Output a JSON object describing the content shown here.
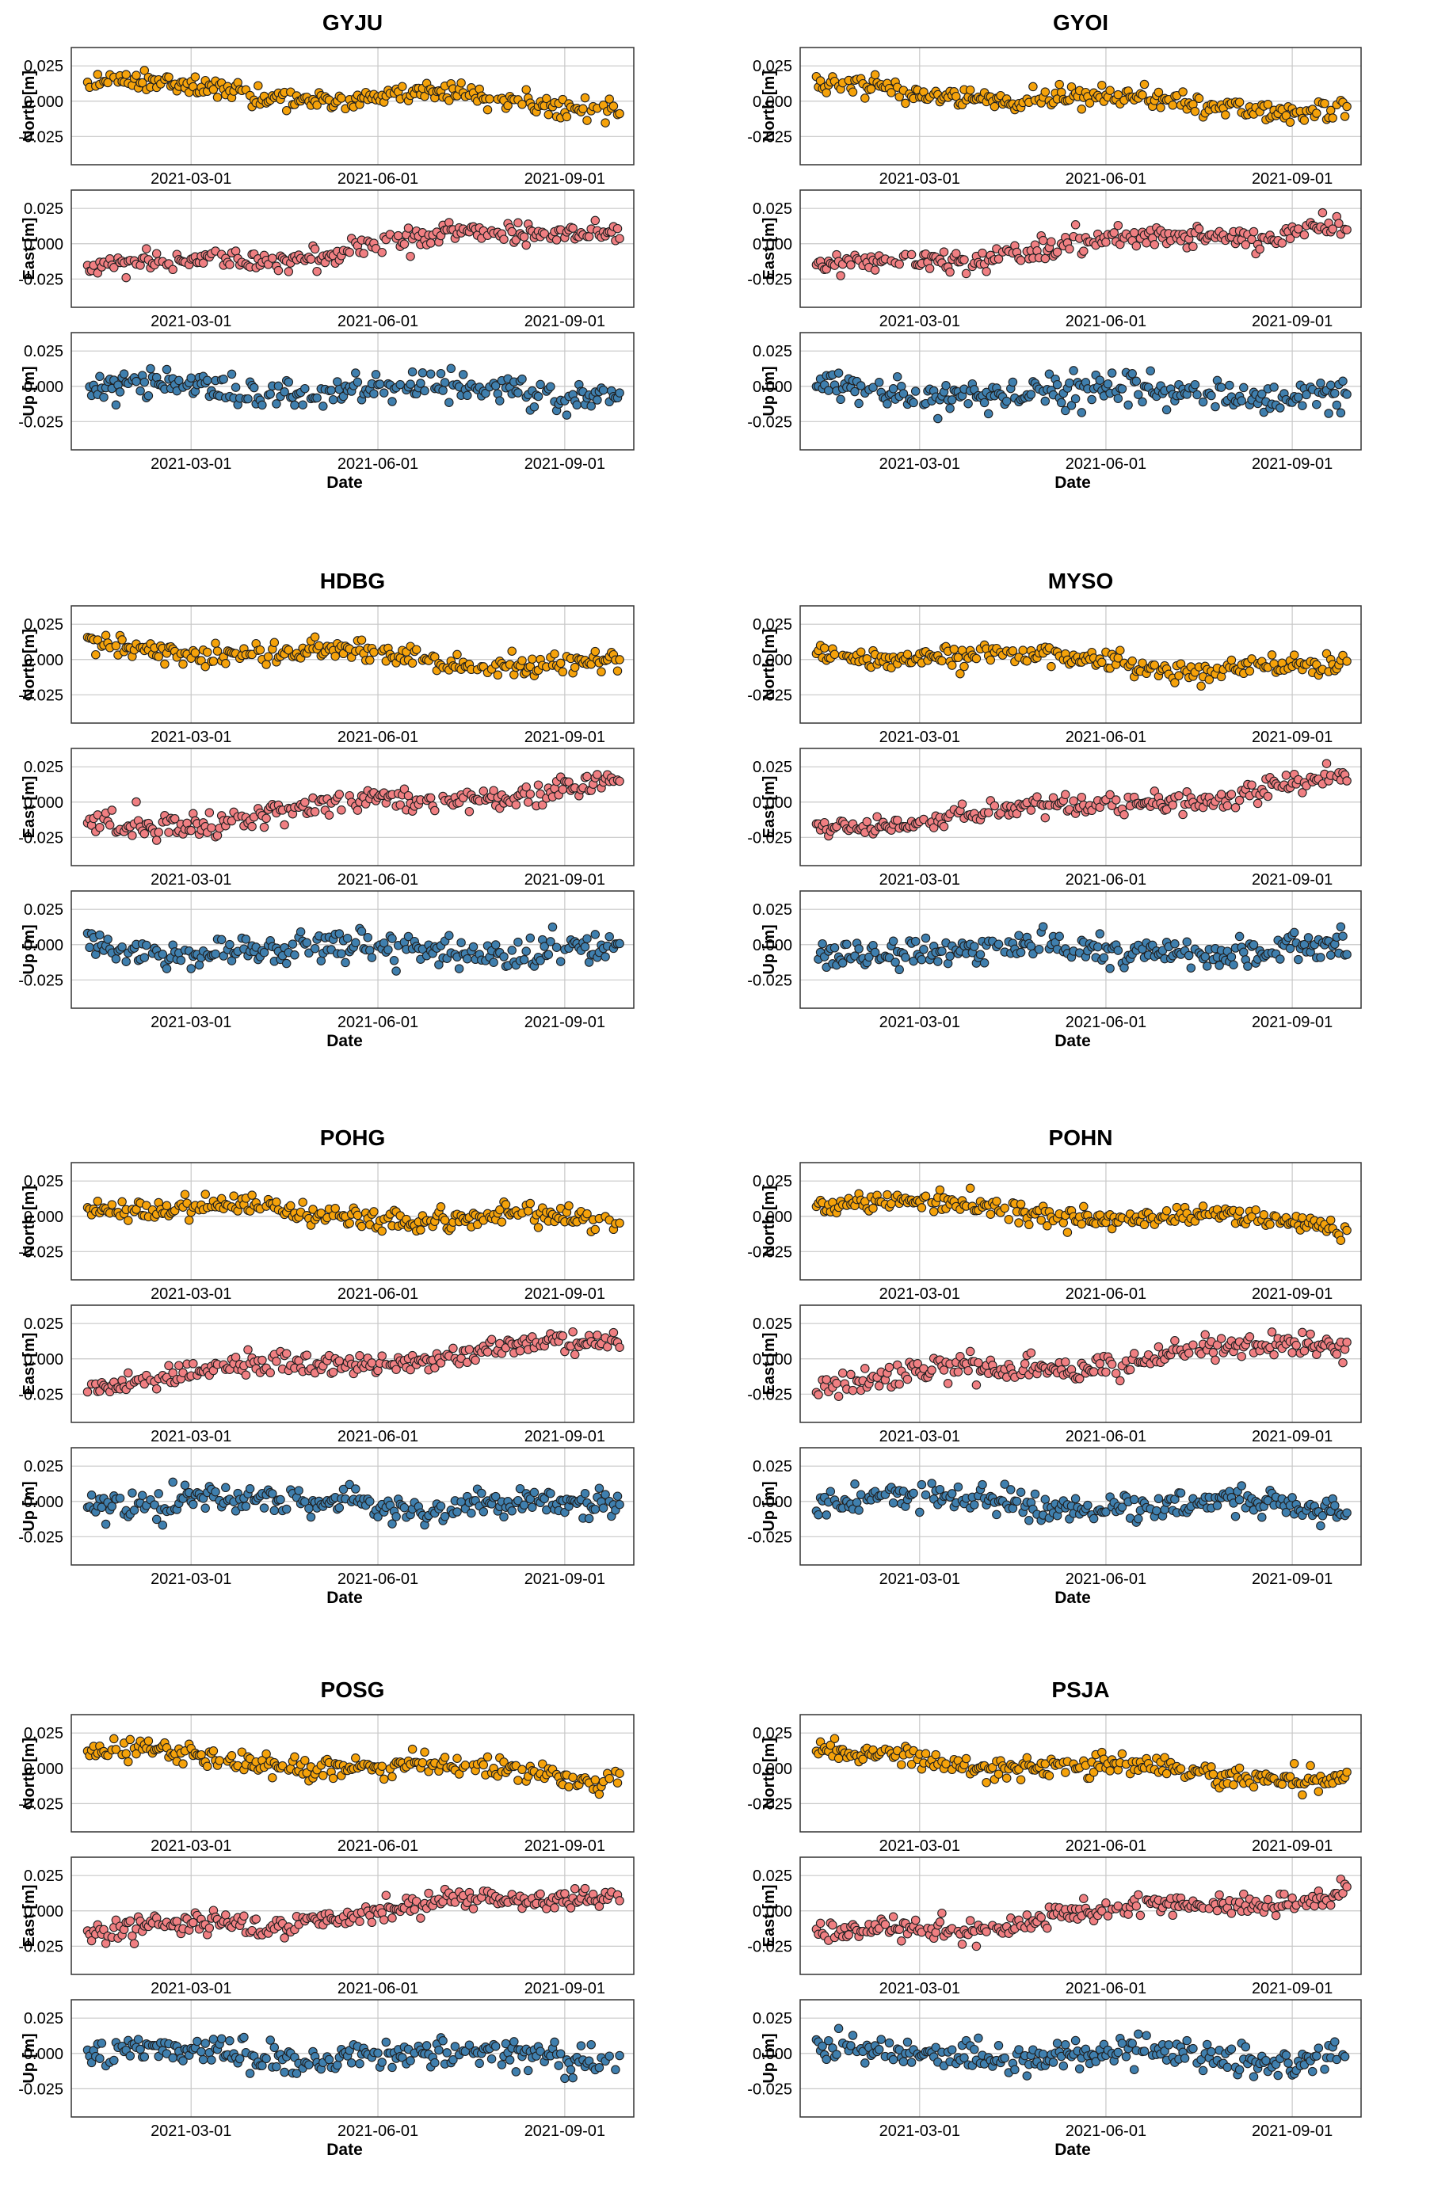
{
  "figure": {
    "grid": true,
    "x_ticks": [
      "2021-03-01",
      "2021-06-01",
      "2021-09-01"
    ],
    "x_tick_days": [
      59,
      151,
      243
    ],
    "x_range_days": [
      0,
      277
    ],
    "data_range_days": [
      8,
      270
    ],
    "xlabel": "Date",
    "y_ticks": [
      "0.025",
      "0.000",
      "-0.025"
    ],
    "y_tick_values": [
      0.025,
      0,
      -0.025
    ],
    "ylim": [
      -0.045,
      0.038
    ],
    "components": [
      {
        "name": "North",
        "label": "North [m]",
        "color": "#f5a20a"
      },
      {
        "name": "East",
        "label": "East [m]",
        "color": "#f07f82"
      },
      {
        "name": "Up",
        "label": "Up [m]",
        "color": "#3f7fae"
      }
    ]
  },
  "chart_data": [
    {
      "type": "scatter",
      "title": "GYJU",
      "x_dates": "daily 2021-01-09 to 2021-09-28",
      "series": [
        {
          "name": "North [m]",
          "trend": [
            0.011,
            -0.003
          ],
          "noise": 0.005
        },
        {
          "name": "East [m]",
          "trend": [
            -0.02,
            0.014
          ],
          "noise": 0.005
        },
        {
          "name": "Up [m]",
          "trend": [
            -0.002,
            -0.004
          ],
          "noise": 0.007
        }
      ]
    },
    {
      "type": "scatter",
      "title": "GYOI",
      "x_dates": "daily 2021-01-09 to 2021-09-28",
      "series": [
        {
          "name": "North [m]",
          "trend": [
            0.009,
            -0.006
          ],
          "noise": 0.005
        },
        {
          "name": "East [m]",
          "trend": [
            -0.018,
            0.015
          ],
          "noise": 0.005
        },
        {
          "name": "Up [m]",
          "trend": [
            -0.002,
            -0.006
          ],
          "noise": 0.008
        }
      ]
    },
    {
      "type": "scatter",
      "title": "HDBG",
      "x_dates": "daily 2021-01-09 to 2021-09-28",
      "series": [
        {
          "name": "North [m]",
          "trend": [
            0.01,
            -0.005
          ],
          "noise": 0.005
        },
        {
          "name": "East [m]",
          "trend": [
            -0.018,
            0.013
          ],
          "noise": 0.005
        },
        {
          "name": "Up [m]",
          "trend": [
            -0.003,
            -0.004
          ],
          "noise": 0.007
        }
      ]
    },
    {
      "type": "scatter",
      "title": "MYSO",
      "x_dates": "daily 2021-01-09 to 2021-09-28",
      "series": [
        {
          "name": "North [m]",
          "trend": [
            0.006,
            -0.008
          ],
          "noise": 0.005
        },
        {
          "name": "East [m]",
          "trend": [
            -0.018,
            0.013
          ],
          "noise": 0.005
        },
        {
          "name": "Up [m]",
          "trend": [
            -0.004,
            -0.005
          ],
          "noise": 0.007
        }
      ]
    },
    {
      "type": "scatter",
      "title": "POHG",
      "x_dates": "daily 2021-01-09 to 2021-09-28",
      "series": [
        {
          "name": "North [m]",
          "trend": [
            0.009,
            -0.006
          ],
          "noise": 0.005
        },
        {
          "name": "East [m]",
          "trend": [
            -0.017,
            0.013
          ],
          "noise": 0.005
        },
        {
          "name": "Up [m]",
          "trend": [
            0.001,
            -0.004
          ],
          "noise": 0.007
        }
      ]
    },
    {
      "type": "scatter",
      "title": "POHN",
      "x_dates": "daily 2021-01-09 to 2021-09-28",
      "series": [
        {
          "name": "North [m]",
          "trend": [
            0.01,
            -0.006
          ],
          "noise": 0.005
        },
        {
          "name": "East [m]",
          "trend": [
            -0.018,
            0.012
          ],
          "noise": 0.006
        },
        {
          "name": "Up [m]",
          "trend": [
            0.001,
            -0.004
          ],
          "noise": 0.007
        }
      ]
    },
    {
      "type": "scatter",
      "title": "POSG",
      "x_dates": "daily 2021-01-09 to 2021-09-28",
      "series": [
        {
          "name": "North [m]",
          "trend": [
            0.01,
            -0.006
          ],
          "noise": 0.005
        },
        {
          "name": "East [m]",
          "trend": [
            -0.018,
            0.014
          ],
          "noise": 0.005
        },
        {
          "name": "Up [m]",
          "trend": [
            0.0,
            -0.003
          ],
          "noise": 0.007
        }
      ]
    },
    {
      "type": "scatter",
      "title": "PSJA",
      "x_dates": "daily 2021-01-09 to 2021-09-28",
      "series": [
        {
          "name": "North [m]",
          "trend": [
            0.009,
            -0.007
          ],
          "noise": 0.005
        },
        {
          "name": "East [m]",
          "trend": [
            -0.018,
            0.013
          ],
          "noise": 0.005
        },
        {
          "name": "Up [m]",
          "trend": [
            0.001,
            -0.003
          ],
          "noise": 0.007
        }
      ]
    }
  ]
}
